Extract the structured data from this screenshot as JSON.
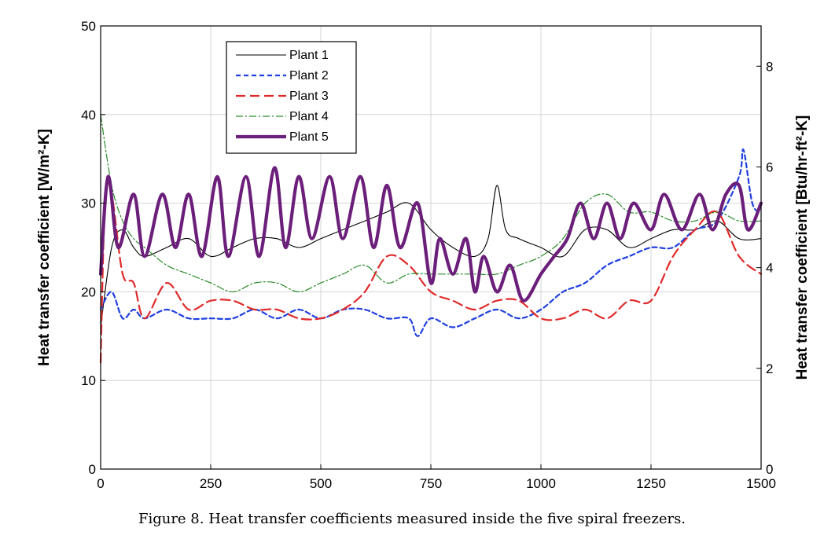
{
  "chart_data": {
    "type": "line",
    "title": "",
    "caption": "Figure 8. Heat transfer coefficients measured inside the five spiral freezers.",
    "xlabel": "",
    "ylabel": "Heat transfer coefficient [W/m²-K]",
    "ylabel_right": "Heat transfer coefficient [Btu/hr-ft²-K]",
    "xlim": [
      0,
      1500
    ],
    "ylim": [
      0,
      50
    ],
    "ylim_right": [
      0,
      8.8
    ],
    "x_ticks": [
      "0",
      "250",
      "500",
      "750",
      "1000",
      "1250",
      "1500"
    ],
    "y_ticks": [
      "0",
      "10",
      "20",
      "30",
      "40",
      "50"
    ],
    "y_ticks_right": [
      "0",
      "2",
      "4",
      "6",
      "8"
    ],
    "grid": true,
    "legend_position": "top-left",
    "series": [
      {
        "name": "Plant 1",
        "color": "#000000",
        "style": "solid-thin",
        "x": [
          0,
          25,
          50,
          75,
          100,
          150,
          200,
          250,
          300,
          350,
          400,
          450,
          500,
          550,
          600,
          650,
          700,
          750,
          800,
          850,
          880,
          900,
          920,
          950,
          1000,
          1050,
          1100,
          1150,
          1200,
          1250,
          1300,
          1350,
          1400,
          1450,
          1500
        ],
        "values": [
          16,
          25,
          27,
          25,
          24,
          25,
          26,
          24,
          25,
          26,
          26,
          25,
          26,
          27,
          28,
          29,
          30,
          27,
          25,
          24,
          26,
          32,
          27,
          26,
          25,
          24,
          27,
          27,
          25,
          26,
          27,
          27,
          28,
          26,
          26
        ]
      },
      {
        "name": "Plant 2",
        "color": "#1f3fe0",
        "style": "short-dash",
        "x": [
          0,
          25,
          50,
          75,
          100,
          150,
          200,
          250,
          300,
          350,
          400,
          450,
          500,
          550,
          600,
          650,
          700,
          720,
          750,
          800,
          850,
          900,
          950,
          1000,
          1050,
          1100,
          1150,
          1200,
          1250,
          1300,
          1350,
          1400,
          1450,
          1460,
          1480,
          1500
        ],
        "values": [
          18,
          20,
          17,
          18,
          17,
          18,
          17,
          17,
          17,
          18,
          17,
          18,
          17,
          18,
          18,
          17,
          17,
          15,
          17,
          16,
          17,
          18,
          17,
          18,
          20,
          21,
          23,
          24,
          25,
          25,
          27,
          28,
          33,
          36,
          30,
          29
        ]
      },
      {
        "name": "Plant 3",
        "color": "#e02a2a",
        "style": "long-dash",
        "x": [
          0,
          10,
          25,
          50,
          75,
          100,
          150,
          200,
          250,
          300,
          350,
          400,
          450,
          500,
          550,
          600,
          650,
          700,
          750,
          800,
          850,
          900,
          950,
          1000,
          1050,
          1100,
          1150,
          1200,
          1250,
          1300,
          1350,
          1400,
          1450,
          1500
        ],
        "values": [
          12,
          30,
          31,
          22,
          21,
          17,
          21,
          18,
          19,
          19,
          18,
          18,
          17,
          17,
          18,
          20,
          24,
          23,
          20,
          19,
          18,
          19,
          19,
          17,
          17,
          18,
          17,
          19,
          19,
          24,
          27,
          29,
          24,
          22
        ]
      },
      {
        "name": "Plant 4",
        "color": "#2a8a2a",
        "style": "dash-dot",
        "x": [
          0,
          25,
          50,
          75,
          100,
          150,
          200,
          250,
          300,
          350,
          400,
          450,
          500,
          550,
          600,
          650,
          700,
          750,
          800,
          850,
          900,
          950,
          1000,
          1050,
          1100,
          1150,
          1200,
          1250,
          1300,
          1350,
          1400,
          1450,
          1500
        ],
        "values": [
          40,
          32,
          28,
          26,
          25,
          23,
          22,
          21,
          20,
          21,
          21,
          20,
          21,
          22,
          23,
          21,
          22,
          22,
          22,
          22,
          22,
          23,
          24,
          26,
          30,
          31,
          29,
          29,
          28,
          28,
          29,
          28,
          28
        ]
      },
      {
        "name": "Plant 5",
        "color": "#6b1f7a",
        "style": "solid-thick",
        "x": [
          0,
          17,
          40,
          75,
          100,
          140,
          170,
          200,
          230,
          265,
          290,
          330,
          360,
          395,
          420,
          450,
          480,
          520,
          550,
          590,
          620,
          650,
          680,
          720,
          750,
          770,
          800,
          830,
          850,
          870,
          900,
          930,
          960,
          1000,
          1030,
          1060,
          1090,
          1120,
          1150,
          1180,
          1210,
          1250,
          1280,
          1320,
          1360,
          1390,
          1420,
          1450,
          1470,
          1500
        ],
        "values": [
          22,
          33,
          25,
          31,
          24,
          31,
          25,
          31,
          24,
          33,
          24,
          33,
          24,
          34,
          25,
          33,
          26,
          33,
          26,
          33,
          25,
          32,
          25,
          30,
          21,
          26,
          22,
          26,
          20,
          24,
          20,
          23,
          19,
          22,
          24,
          26,
          30,
          26,
          30,
          26,
          30,
          27,
          31,
          27,
          31,
          27,
          31,
          32,
          27,
          30
        ]
      }
    ]
  }
}
